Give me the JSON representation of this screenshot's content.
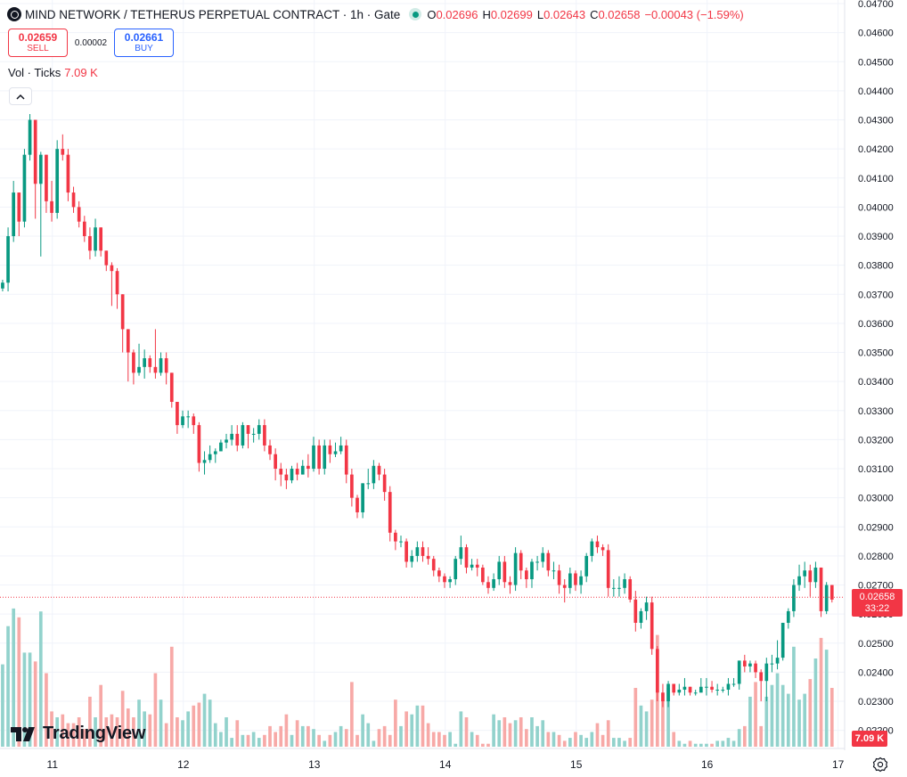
{
  "header": {
    "symbol_title": "MIND NETWORK / TETHERUS PERPETUAL CONTRACT · 1h · Gate",
    "ohlc": [
      {
        "k": "O",
        "v": "0.02696"
      },
      {
        "k": "H",
        "v": "0.02699"
      },
      {
        "k": "L",
        "v": "0.02643"
      },
      {
        "k": "C",
        "v": "0.02658"
      }
    ],
    "change": "−0.00043 (−1.59%)"
  },
  "trade": {
    "sell_price": "0.02659",
    "sell_label": "SELL",
    "spread": "0.00002",
    "buy_price": "0.02661",
    "buy_label": "BUY"
  },
  "volume_legend": {
    "label": "Vol · Ticks",
    "value": "7.09 K"
  },
  "collapse_icon": "chevron-up-icon",
  "current_price": {
    "price": "0.02658",
    "countdown": "33:22"
  },
  "current_volume": "7.09 K",
  "brand": "TradingView",
  "colors": {
    "up": "#089981",
    "down": "#f23645",
    "grid": "#f0f3fa",
    "text": "#131722"
  },
  "chart_data": {
    "type": "candlestick",
    "interval": "1h",
    "price_axis": {
      "ylim": [
        0.0215,
        0.047
      ],
      "ticks": [
        "0.02200",
        "0.02300",
        "0.02400",
        "0.02500",
        "0.02600",
        "0.02700",
        "0.02800",
        "0.02900",
        "0.03000",
        "0.03100",
        "0.03200",
        "0.03300",
        "0.03400",
        "0.03500",
        "0.03600",
        "0.03700",
        "0.03800",
        "0.03900",
        "0.04000",
        "0.04100",
        "0.04200",
        "0.04300",
        "0.04400",
        "0.04500",
        "0.04600",
        "0.04700"
      ]
    },
    "time_axis": {
      "x_range": [
        10.6,
        17.05
      ],
      "ticks": [
        {
          "x": 11,
          "label": "11"
        },
        {
          "x": 12,
          "label": "12"
        },
        {
          "x": 13,
          "label": "13"
        },
        {
          "x": 14,
          "label": "14"
        },
        {
          "x": 15,
          "label": "15"
        },
        {
          "x": 16,
          "label": "16"
        },
        {
          "x": 17,
          "label": "17"
        }
      ]
    },
    "candle_width_days": 0.025,
    "closes": [
      0.0374,
      0.039,
      0.0405,
      0.0395,
      0.0418,
      0.043,
      0.0408,
      0.0418,
      0.0402,
      0.0398,
      0.042,
      0.0418,
      0.0405,
      0.04,
      0.0395,
      0.039,
      0.0385,
      0.0393,
      0.0385,
      0.038,
      0.0378,
      0.037,
      0.0358,
      0.035,
      0.0343,
      0.0345,
      0.0348,
      0.0345,
      0.0343,
      0.0348,
      0.0343,
      0.0333,
      0.0325,
      0.0328,
      0.0328,
      0.0325,
      0.0312,
      0.0313,
      0.0315,
      0.0316,
      0.0319,
      0.032,
      0.0322,
      0.0318,
      0.0325,
      0.0322,
      0.0322,
      0.0325,
      0.0318,
      0.0315,
      0.031,
      0.0308,
      0.0306,
      0.031,
      0.0308,
      0.0311,
      0.031,
      0.0318,
      0.031,
      0.0318,
      0.0315,
      0.0316,
      0.0318,
      0.0308,
      0.03,
      0.0295,
      0.0305,
      0.0305,
      0.0311,
      0.0308,
      0.0302,
      0.0288,
      0.0285,
      0.0285,
      0.0278,
      0.028,
      0.0283,
      0.028,
      0.0279,
      0.0275,
      0.0273,
      0.0271,
      0.0272,
      0.0279,
      0.0283,
      0.0276,
      0.0277,
      0.0276,
      0.0271,
      0.0269,
      0.0272,
      0.0278,
      0.0271,
      0.027,
      0.0281,
      0.0275,
      0.0272,
      0.0278,
      0.0278,
      0.0281,
      0.0275,
      0.0275,
      0.027,
      0.0269,
      0.0274,
      0.027,
      0.0273,
      0.028,
      0.0285,
      0.0283,
      0.0282,
      0.0269,
      0.0269,
      0.0269,
      0.0272,
      0.0265,
      0.0257,
      0.0261,
      0.0264,
      0.0248,
      0.0233,
      0.023,
      0.0236,
      0.0233,
      0.0234,
      0.0235,
      0.0233,
      0.0233,
      0.0235,
      0.0235,
      0.0234,
      0.0234,
      0.0234,
      0.0236,
      0.0236,
      0.0244,
      0.0242,
      0.0243,
      0.024,
      0.0237,
      0.0243,
      0.0243,
      0.0245,
      0.0257,
      0.0261,
      0.027,
      0.0273,
      0.0275,
      0.0271,
      0.0276,
      0.0261,
      0.027,
      0.0265
    ],
    "open_first": 0.0372,
    "highs": [
      0.0375,
      0.0393,
      0.0409,
      0.0395,
      0.042,
      0.0432,
      0.043,
      0.0419,
      0.0418,
      0.0409,
      0.0423,
      0.0425,
      0.042,
      0.0407,
      0.0402,
      0.0397,
      0.0393,
      0.0396,
      0.0393,
      0.0385,
      0.0381,
      0.0379,
      0.037,
      0.0358,
      0.0351,
      0.0353,
      0.0351,
      0.0349,
      0.0358,
      0.035,
      0.035,
      0.0342,
      0.0333,
      0.033,
      0.033,
      0.0329,
      0.0326,
      0.0316,
      0.0318,
      0.0317,
      0.032,
      0.0322,
      0.0325,
      0.0325,
      0.0326,
      0.0325,
      0.0324,
      0.0327,
      0.0327,
      0.032,
      0.0317,
      0.0312,
      0.031,
      0.0311,
      0.0312,
      0.0313,
      0.0315,
      0.0321,
      0.032,
      0.032,
      0.032,
      0.0319,
      0.0321,
      0.032,
      0.031,
      0.0301,
      0.0305,
      0.031,
      0.0313,
      0.0312,
      0.031,
      0.0304,
      0.0289,
      0.0287,
      0.0286,
      0.0282,
      0.0285,
      0.0285,
      0.0283,
      0.028,
      0.0276,
      0.0274,
      0.0273,
      0.028,
      0.0287,
      0.0284,
      0.0279,
      0.0279,
      0.0277,
      0.0273,
      0.0274,
      0.028,
      0.028,
      0.0273,
      0.0283,
      0.0282,
      0.0276,
      0.0279,
      0.028,
      0.0283,
      0.0282,
      0.0278,
      0.0277,
      0.0272,
      0.0276,
      0.0275,
      0.0275,
      0.0281,
      0.0286,
      0.0287,
      0.0284,
      0.0284,
      0.0272,
      0.0273,
      0.0274,
      0.0273,
      0.0268,
      0.0262,
      0.0266,
      0.0266,
      0.0249,
      0.0236,
      0.0237,
      0.0236,
      0.0236,
      0.0238,
      0.0235,
      0.0234,
      0.0238,
      0.0238,
      0.0237,
      0.0236,
      0.0235,
      0.0238,
      0.0238,
      0.0244,
      0.0246,
      0.0244,
      0.0244,
      0.0241,
      0.0245,
      0.0246,
      0.0251,
      0.0257,
      0.0262,
      0.0272,
      0.0277,
      0.0278,
      0.0277,
      0.0278,
      0.0276,
      0.0271,
      0.027
    ],
    "lows": [
      0.0371,
      0.0371,
      0.0388,
      0.039,
      0.0393,
      0.0416,
      0.0396,
      0.0383,
      0.0398,
      0.0395,
      0.0396,
      0.0416,
      0.0402,
      0.0398,
      0.0393,
      0.0388,
      0.0382,
      0.0383,
      0.0383,
      0.0378,
      0.0366,
      0.0365,
      0.035,
      0.034,
      0.0339,
      0.0342,
      0.0341,
      0.0343,
      0.0341,
      0.0342,
      0.0339,
      0.0331,
      0.0322,
      0.0324,
      0.0324,
      0.0322,
      0.0309,
      0.0308,
      0.0312,
      0.0312,
      0.0316,
      0.0317,
      0.0318,
      0.0316,
      0.0317,
      0.0317,
      0.0319,
      0.032,
      0.0316,
      0.0313,
      0.0306,
      0.0304,
      0.0303,
      0.0305,
      0.0306,
      0.0308,
      0.0307,
      0.0309,
      0.0308,
      0.0308,
      0.0312,
      0.0314,
      0.0315,
      0.0305,
      0.0297,
      0.0293,
      0.0293,
      0.0303,
      0.0303,
      0.0306,
      0.0299,
      0.0285,
      0.0282,
      0.0283,
      0.0276,
      0.0276,
      0.0278,
      0.0278,
      0.0277,
      0.0273,
      0.0271,
      0.0269,
      0.0269,
      0.027,
      0.0277,
      0.0274,
      0.0275,
      0.0273,
      0.027,
      0.0267,
      0.0268,
      0.027,
      0.0269,
      0.0267,
      0.0268,
      0.0272,
      0.0269,
      0.0269,
      0.0275,
      0.0276,
      0.0273,
      0.0272,
      0.0267,
      0.0264,
      0.0267,
      0.0268,
      0.0267,
      0.0271,
      0.0278,
      0.0281,
      0.028,
      0.0266,
      0.0266,
      0.0266,
      0.0267,
      0.0264,
      0.0254,
      0.0255,
      0.0258,
      0.0246,
      0.023,
      0.0228,
      0.0228,
      0.0232,
      0.0232,
      0.0232,
      0.0232,
      0.0232,
      0.0233,
      0.0232,
      0.0233,
      0.0232,
      0.0233,
      0.0232,
      0.0235,
      0.0234,
      0.024,
      0.024,
      0.0238,
      0.023,
      0.023,
      0.024,
      0.0241,
      0.0244,
      0.0255,
      0.0259,
      0.0268,
      0.0269,
      0.0266,
      0.0269,
      0.0259,
      0.026,
      0.0264
    ],
    "volume": {
      "ylim": [
        0,
        6.0
      ],
      "values": [
        2.8,
        4.1,
        4.7,
        4.4,
        3.2,
        3.2,
        2.9,
        4.6,
        2.5,
        1.2,
        1.0,
        1.1,
        0.8,
        0.8,
        1.0,
        0.6,
        1.7,
        1.0,
        2.1,
        1.0,
        1.1,
        1.0,
        1.9,
        1.3,
        1.0,
        1.6,
        1.2,
        1.1,
        2.5,
        1.6,
        0.8,
        3.4,
        1.0,
        0.9,
        1.2,
        1.4,
        1.5,
        1.8,
        1.6,
        0.8,
        0.5,
        1.0,
        0.3,
        0.9,
        0.4,
        0.4,
        0.5,
        0.3,
        0.4,
        0.7,
        0.5,
        0.7,
        1.1,
        0.4,
        0.9,
        0.7,
        0.7,
        0.6,
        0.4,
        0.2,
        0.4,
        0.5,
        0.7,
        0.6,
        2.2,
        0.4,
        1.1,
        0.8,
        0.2,
        0.6,
        0.7,
        0.4,
        1.6,
        0.7,
        1.2,
        1.1,
        1.4,
        1.4,
        0.8,
        0.5,
        0.5,
        0.4,
        0.5,
        0.1,
        1.2,
        1.0,
        0.5,
        0.4,
        0.1,
        0.1,
        1.1,
        0.9,
        1.0,
        0.8,
        0.9,
        1.0,
        0.6,
        1.0,
        0.7,
        0.9,
        0.5,
        0.5,
        0.4,
        0.2,
        0.3,
        0.5,
        0.4,
        0.3,
        0.5,
        0.8,
        0.4,
        0.9,
        0.3,
        0.3,
        0.2,
        0.3,
        2.0,
        1.4,
        1.2,
        1.6,
        3.8,
        1.6,
        2.0,
        0.5,
        0.2,
        0.1,
        0.2,
        0.1,
        0.1,
        0.1,
        0.1,
        0.2,
        0.2,
        0.3,
        0.2,
        0.6,
        0.7,
        1.7,
        2.2,
        0.7,
        1.7,
        2.1,
        2.5,
        2.1,
        1.8,
        3.4,
        1.6,
        1.8,
        2.3,
        3.0,
        3.7,
        3.3,
        2.0,
        0.8,
        0.6,
        0.4,
        0.4
      ]
    }
  }
}
